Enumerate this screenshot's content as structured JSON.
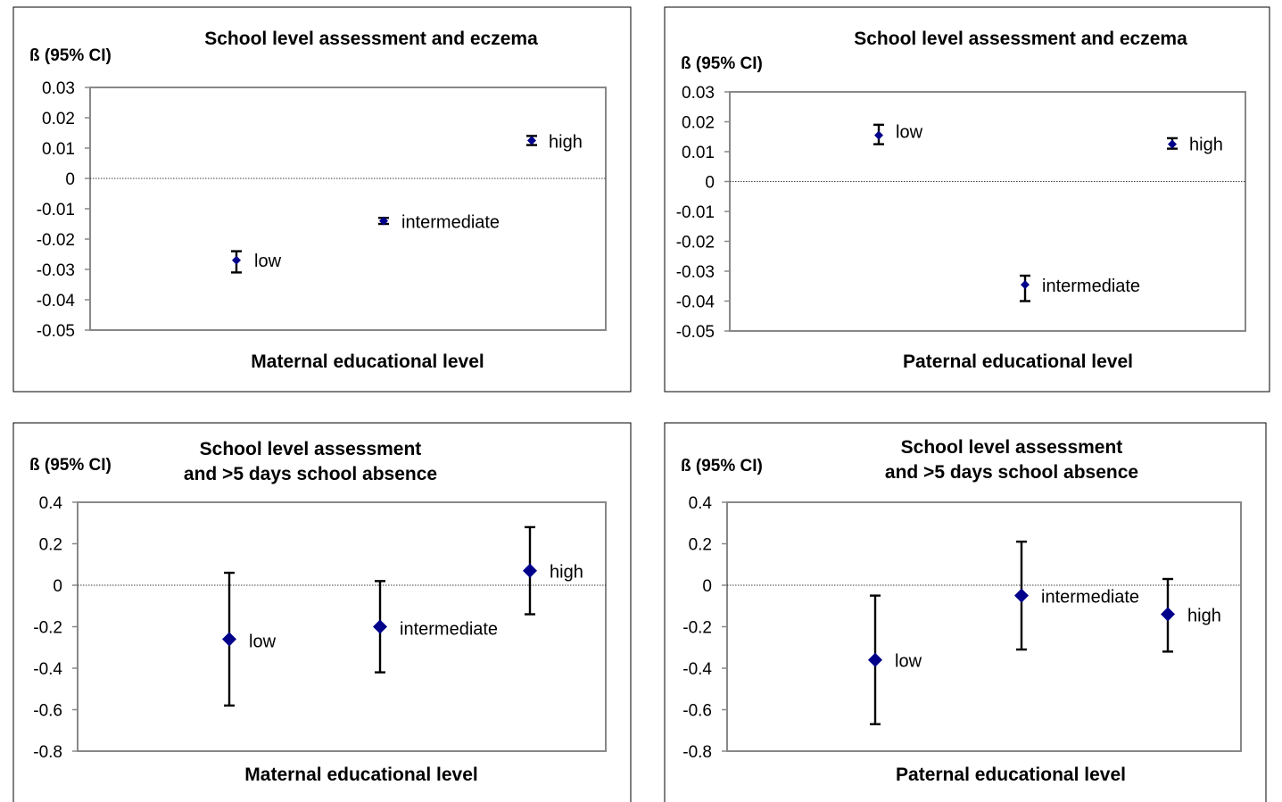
{
  "chart_data": [
    {
      "type": "scatter",
      "title": [
        "School level assessment and eczema"
      ],
      "ylabel": "ß (95% CI)",
      "xlabel": "Maternal educational level",
      "ylim": [
        -0.05,
        0.03
      ],
      "yticks": [
        "0.03",
        "0.02",
        "0.01",
        "0",
        "-0.01",
        "-0.02",
        "-0.03",
        "-0.04",
        "-0.05"
      ],
      "yticks_values": [
        0.03,
        0.02,
        0.01,
        0,
        -0.01,
        -0.02,
        -0.03,
        -0.04,
        -0.05
      ],
      "points": [
        {
          "label": "low",
          "y": -0.027,
          "lower": -0.031,
          "upper": -0.024
        },
        {
          "label": "intermediate",
          "y": -0.014,
          "lower": -0.015,
          "upper": -0.013
        },
        {
          "label": "high",
          "y": 0.0125,
          "lower": 0.011,
          "upper": 0.014
        }
      ]
    },
    {
      "type": "scatter",
      "title": [
        "School level assessment and eczema"
      ],
      "ylabel": "ß (95% CI)",
      "xlabel": "Paternal educational level",
      "ylim": [
        -0.05,
        0.03
      ],
      "yticks": [
        "0.03",
        "0.02",
        "0.01",
        "0",
        "-0.01",
        "-0.02",
        "-0.03",
        "-0.04",
        "-0.05"
      ],
      "yticks_values": [
        0.03,
        0.02,
        0.01,
        0,
        -0.01,
        -0.02,
        -0.03,
        -0.04,
        -0.05
      ],
      "points": [
        {
          "label": "low",
          "y": 0.0155,
          "lower": 0.0125,
          "upper": 0.019
        },
        {
          "label": "intermediate",
          "y": -0.0345,
          "lower": -0.04,
          "upper": -0.0315
        },
        {
          "label": "high",
          "y": 0.0125,
          "lower": 0.011,
          "upper": 0.0145
        }
      ]
    },
    {
      "type": "scatter",
      "title": [
        "School level assessment",
        "and >5 days school absence"
      ],
      "ylabel": "ß (95% CI)",
      "xlabel": "Maternal educational level",
      "ylim": [
        -0.8,
        0.4
      ],
      "yticks": [
        "0.4",
        "0.2",
        "0",
        "-0.2",
        "-0.4",
        "-0.6",
        "-0.8"
      ],
      "yticks_values": [
        0.4,
        0.2,
        0,
        -0.2,
        -0.4,
        -0.6,
        -0.8
      ],
      "points": [
        {
          "label": "low",
          "y": -0.26,
          "lower": -0.58,
          "upper": 0.06
        },
        {
          "label": "intermediate",
          "y": -0.2,
          "lower": -0.42,
          "upper": 0.02
        },
        {
          "label": "high",
          "y": 0.07,
          "lower": -0.14,
          "upper": 0.28
        }
      ]
    },
    {
      "type": "scatter",
      "title": [
        "School level assessment",
        "and >5 days school absence"
      ],
      "ylabel": "ß (95% CI)",
      "xlabel": "Paternal educational level",
      "ylim": [
        -0.8,
        0.4
      ],
      "yticks": [
        "0.4",
        "0.2",
        "0",
        "-0.2",
        "-0.4",
        "-0.6",
        "-0.8"
      ],
      "yticks_values": [
        0.4,
        0.2,
        0,
        -0.2,
        -0.4,
        -0.6,
        -0.8
      ],
      "points": [
        {
          "label": "low",
          "y": -0.36,
          "lower": -0.67,
          "upper": -0.05
        },
        {
          "label": "intermediate",
          "y": -0.05,
          "lower": -0.31,
          "upper": 0.21
        },
        {
          "label": "high",
          "y": -0.14,
          "lower": -0.32,
          "upper": 0.03
        }
      ]
    }
  ]
}
